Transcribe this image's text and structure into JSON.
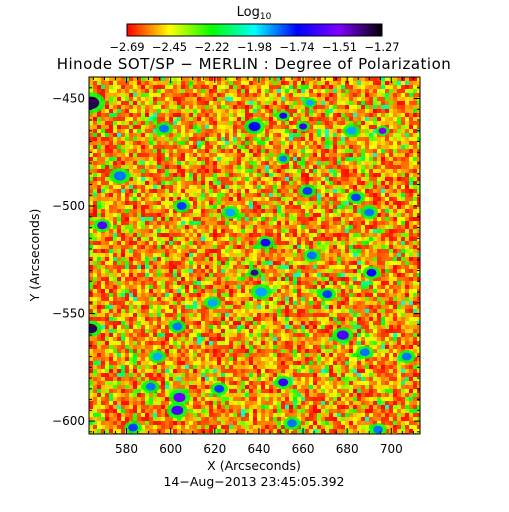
{
  "chart_data": {
    "type": "heatmap",
    "title": "Hinode SOT/SP − MERLIN : Degree of Polarization",
    "colorbar": {
      "label_base": "Log",
      "label_sub": "10",
      "ticks": [
        "−2.69",
        "−2.45",
        "−2.22",
        "−1.98",
        "−1.74",
        "−1.51",
        "−1.27"
      ],
      "range": [
        -2.69,
        -1.27
      ],
      "colormap": [
        "#ff0000",
        "#ffff00",
        "#00ff00",
        "#00ffff",
        "#0000ff",
        "#8000ff",
        "#000000"
      ]
    },
    "xlabel": "X (Arcseconds)",
    "ylabel": "Y (Arcseconds)",
    "xlim": [
      563,
      713
    ],
    "ylim": [
      -606,
      -440
    ],
    "xticks": [
      "580",
      "600",
      "620",
      "640",
      "660",
      "680",
      "700"
    ],
    "yticks": [
      "−450",
      "−500",
      "−550",
      "−600"
    ],
    "xtick_values": [
      580,
      600,
      620,
      640,
      660,
      680,
      700
    ],
    "ytick_values": [
      -450,
      -500,
      -550,
      -600
    ],
    "background_level": -2.6,
    "features": [
      {
        "x": 564,
        "y": -452,
        "r": 4,
        "level": -1.35
      },
      {
        "x": 663,
        "y": -452,
        "r": 2,
        "level": -1.9
      },
      {
        "x": 651,
        "y": -458,
        "r": 2,
        "level": -1.7
      },
      {
        "x": 597,
        "y": -464,
        "r": 2.5,
        "level": -1.85
      },
      {
        "x": 638,
        "y": -463,
        "r": 3,
        "level": -1.75
      },
      {
        "x": 660,
        "y": -463,
        "r": 2,
        "level": -1.65
      },
      {
        "x": 682,
        "y": -465,
        "r": 2.5,
        "level": -1.9
      },
      {
        "x": 696,
        "y": -465,
        "r": 2,
        "level": -1.5
      },
      {
        "x": 651,
        "y": -478,
        "r": 2,
        "level": -1.85
      },
      {
        "x": 577,
        "y": -486,
        "r": 3,
        "level": -1.85
      },
      {
        "x": 662,
        "y": -493,
        "r": 2.5,
        "level": -1.8
      },
      {
        "x": 684,
        "y": -496,
        "r": 2.5,
        "level": -1.8
      },
      {
        "x": 605,
        "y": -500,
        "r": 2.5,
        "level": -1.8
      },
      {
        "x": 569,
        "y": -509,
        "r": 2.5,
        "level": -1.6
      },
      {
        "x": 627,
        "y": -503,
        "r": 2.5,
        "level": -1.9
      },
      {
        "x": 690,
        "y": -503,
        "r": 2.5,
        "level": -1.85
      },
      {
        "x": 643,
        "y": -517,
        "r": 2.5,
        "level": -1.7
      },
      {
        "x": 641,
        "y": -540,
        "r": 3,
        "level": -1.9
      },
      {
        "x": 638,
        "y": -531,
        "r": 2,
        "level": -1.4
      },
      {
        "x": 671,
        "y": -541,
        "r": 2.5,
        "level": -1.8
      },
      {
        "x": 664,
        "y": -523,
        "r": 2.5,
        "level": -1.85
      },
      {
        "x": 691,
        "y": -531,
        "r": 2.5,
        "level": -1.75
      },
      {
        "x": 619,
        "y": -545,
        "r": 2.5,
        "level": -1.9
      },
      {
        "x": 564,
        "y": -557,
        "r": 3,
        "level": -1.35
      },
      {
        "x": 603,
        "y": -556,
        "r": 2.5,
        "level": -1.85
      },
      {
        "x": 678,
        "y": -560,
        "r": 3,
        "level": -1.6
      },
      {
        "x": 688,
        "y": -568,
        "r": 2.5,
        "level": -1.85
      },
      {
        "x": 594,
        "y": -570,
        "r": 2.5,
        "level": -1.9
      },
      {
        "x": 707,
        "y": -570,
        "r": 2.5,
        "level": -1.85
      },
      {
        "x": 591,
        "y": -584,
        "r": 2.5,
        "level": -1.85
      },
      {
        "x": 622,
        "y": -585,
        "r": 2.5,
        "level": -1.8
      },
      {
        "x": 651,
        "y": -582,
        "r": 2.5,
        "level": -1.65
      },
      {
        "x": 604,
        "y": -589,
        "r": 3,
        "level": -1.55
      },
      {
        "x": 603,
        "y": -595,
        "r": 3,
        "level": -1.6
      },
      {
        "x": 583,
        "y": -603,
        "r": 2.5,
        "level": -1.8
      },
      {
        "x": 655,
        "y": -601,
        "r": 2.5,
        "level": -1.85
      },
      {
        "x": 694,
        "y": -604,
        "r": 2.5,
        "level": -1.85
      }
    ],
    "xlabel_extra": "",
    "timestamp": "14−Aug−2013 23:45:05.392"
  }
}
